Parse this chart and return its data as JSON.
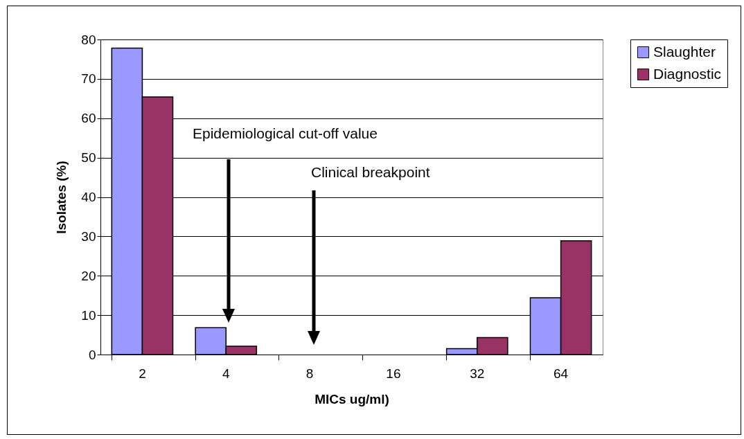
{
  "chart_data": {
    "type": "bar",
    "xlabel": "MICs ug/ml)",
    "ylabel": "Isolates (%)",
    "categories": [
      "2",
      "4",
      "8",
      "16",
      "32",
      "64"
    ],
    "series": [
      {
        "name": "Slaughter",
        "color": "#9999ff",
        "values": [
          77.8,
          6.8,
          0,
          0,
          1.5,
          14.4
        ]
      },
      {
        "name": "Diagnostic",
        "color": "#993366",
        "values": [
          65.4,
          2.1,
          0,
          0,
          4.3,
          28.9
        ]
      }
    ],
    "ylim": [
      0,
      80
    ],
    "yticks": [
      0,
      10,
      20,
      30,
      40,
      50,
      60,
      70,
      80
    ],
    "grid": "y",
    "legend": "right",
    "annotations": [
      "Epidemiological cut-off value",
      "Clinical breakpoint"
    ]
  }
}
